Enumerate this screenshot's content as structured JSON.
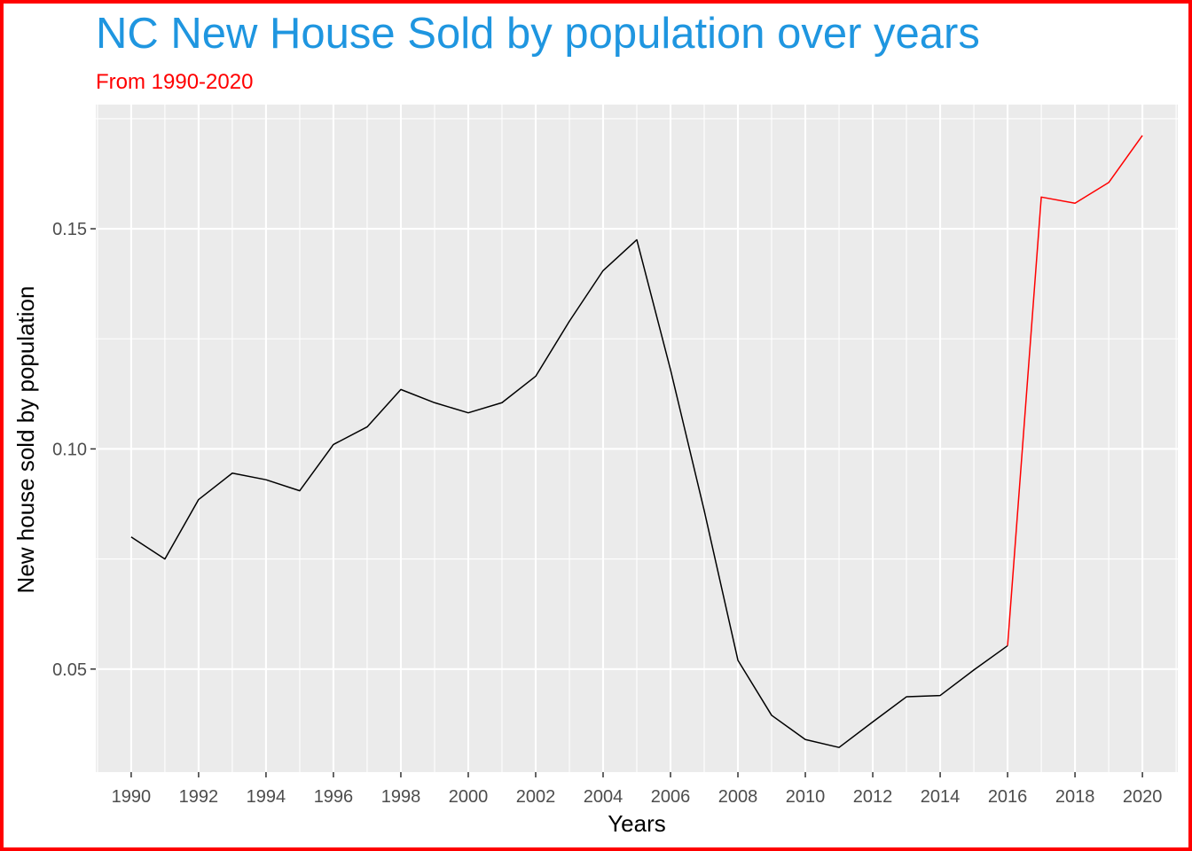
{
  "chart_data": {
    "type": "line",
    "title": "NC New House Sold by population  over years",
    "subtitle": "From 1990-2020",
    "xlabel": "Years",
    "ylabel": "New house sold by population",
    "x_ticks": [
      "1990",
      "1992",
      "1994",
      "1996",
      "1998",
      "2000",
      "2002",
      "2004",
      "2006",
      "2008",
      "2010",
      "2012",
      "2014",
      "2016",
      "2018",
      "2020"
    ],
    "y_ticks": [
      "0.05",
      "0.10",
      "0.15"
    ],
    "xlim": [
      1988.95,
      2021.05
    ],
    "ylim": [
      0.0266,
      0.1782
    ],
    "grid": true,
    "panel_background": "#ebebeb",
    "x": [
      1990,
      1991,
      1992,
      1993,
      1994,
      1995,
      1996,
      1997,
      1998,
      1999,
      2000,
      2001,
      2002,
      2003,
      2004,
      2005,
      2006,
      2007,
      2008,
      2009,
      2010,
      2011,
      2012,
      2013,
      2014,
      2015,
      2016,
      2017,
      2018,
      2019,
      2020
    ],
    "y": [
      0.08,
      0.075,
      0.0885,
      0.0945,
      0.093,
      0.0905,
      0.101,
      0.105,
      0.1135,
      0.1105,
      0.1082,
      0.1105,
      0.1165,
      0.129,
      0.1405,
      0.1475,
      0.118,
      0.086,
      0.052,
      0.0395,
      0.034,
      0.0322,
      0.038,
      0.0437,
      0.044,
      0.0498,
      0.0553,
      0.1572,
      0.1558,
      0.1605,
      0.1712
    ],
    "color_segments": [
      {
        "from": 1990,
        "to": 2016,
        "color": "#000000"
      },
      {
        "from": 2016,
        "to": 2020,
        "color": "#ff0000"
      }
    ]
  }
}
